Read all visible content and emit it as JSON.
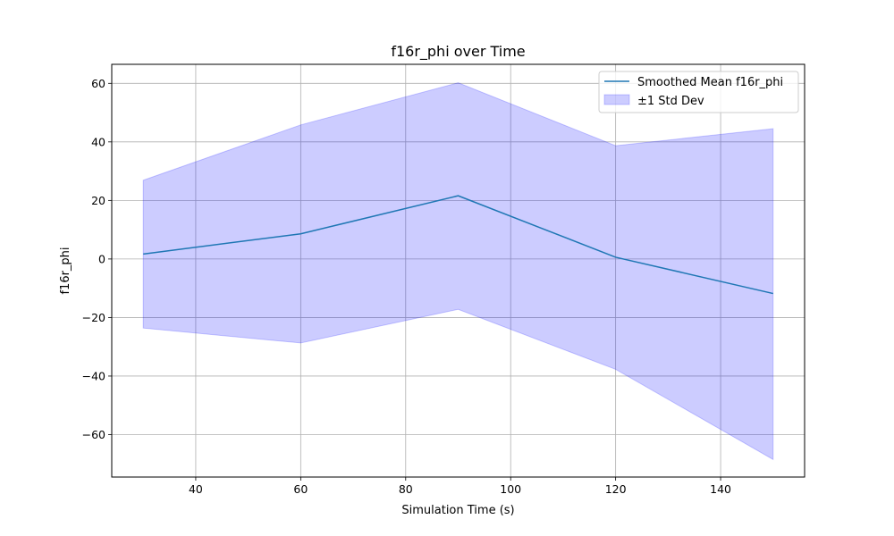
{
  "chart_data": {
    "type": "line",
    "title": "f16r_phi over Time",
    "xlabel": "Simulation Time (s)",
    "ylabel": "f16r_phi",
    "x": [
      30,
      60,
      90,
      120,
      150
    ],
    "series": [
      {
        "name": "Smoothed Mean f16r_phi",
        "kind": "line",
        "color": "#1f77b4",
        "values": [
          1.7,
          8.6,
          21.6,
          0.6,
          -11.8
        ]
      },
      {
        "name": "±1 Std Dev",
        "kind": "band",
        "color": "#0000ff",
        "lower": [
          -23.6,
          -28.7,
          -17.2,
          -37.7,
          -68.5
        ],
        "upper": [
          26.9,
          45.8,
          60.2,
          38.7,
          44.5
        ]
      }
    ],
    "xlim": [
      24,
      156
    ],
    "ylim": [
      -74.5,
      66.5
    ],
    "xticks": [
      40,
      60,
      80,
      100,
      120,
      140
    ],
    "yticks": [
      -60,
      -40,
      -20,
      0,
      20,
      40,
      60
    ],
    "xtick_labels": [
      "40",
      "60",
      "80",
      "100",
      "120",
      "140"
    ],
    "ytick_labels": [
      "−60",
      "−40",
      "−20",
      "0",
      "20",
      "40",
      "60"
    ],
    "grid": true,
    "legend_position": "top-right"
  }
}
